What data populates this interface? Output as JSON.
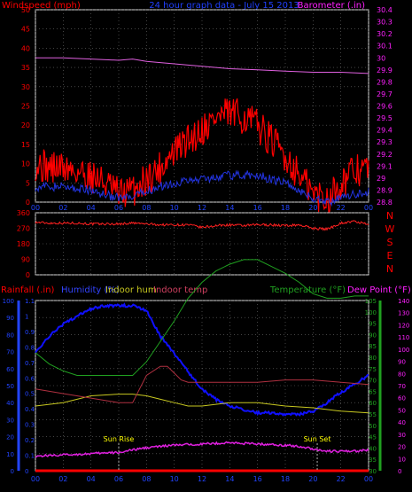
{
  "colors": {
    "background": "#000000",
    "frame": "#d8d8d8",
    "grid": "#6e6e6e",
    "windspeed": "#ff0000",
    "wind_avg": "#2233dd",
    "barometer": "#e060e0",
    "winddir": "#ff2020",
    "rainfall": "#ff0000",
    "humidity": "#1010ff",
    "indoor_hum": "#c8c820",
    "indoor_temp": "#b03040",
    "temperature": "#20a020",
    "dew_point": "#e020e0",
    "title": "#2040ff",
    "sun_marker": "#ffff00",
    "axis_blue": "#2244ff",
    "axis_green": "#20a020",
    "axis_magenta": "#ff20ff"
  },
  "chart_data": [
    {
      "type": "line",
      "title": "24 hour graph data - July 15 2013",
      "left_axis_label": "Windspeed (mph)",
      "right_axis_label": "Barometer (.in)",
      "x_ticks": [
        "00",
        "02",
        "04",
        "06",
        "08",
        "10",
        "12",
        "14",
        "16",
        "18",
        "20",
        "22",
        "00"
      ],
      "x_range": [
        0,
        24
      ],
      "y_left_range": [
        0,
        50
      ],
      "y_left_ticks": [
        "0",
        "5",
        "10",
        "15",
        "20",
        "25",
        "30",
        "35",
        "40",
        "45",
        "50"
      ],
      "y_right_range": [
        28.8,
        30.4
      ],
      "y_right_ticks": [
        "28.8",
        "28.9",
        "29",
        "29.1",
        "29.2",
        "29.3",
        "29.4",
        "29.5",
        "29.6",
        "29.7",
        "29.8",
        "29.9",
        "30",
        "30.1",
        "30.2",
        "30.3",
        "30.4"
      ],
      "grid": true,
      "series": [
        {
          "key": "windspeed",
          "x": [
            0,
            1,
            2,
            3,
            4,
            5,
            6,
            7,
            8,
            9,
            10,
            11,
            12,
            13,
            14,
            15,
            16,
            17,
            18,
            19,
            20,
            21,
            22,
            23,
            24
          ],
          "y": [
            10,
            9,
            9,
            8,
            7,
            5,
            2,
            3,
            6,
            9,
            13,
            16,
            19,
            22,
            23,
            22,
            20,
            16,
            12,
            7,
            2,
            1,
            5,
            8,
            9
          ]
        },
        {
          "key": "wind_avg",
          "x": [
            0,
            2,
            4,
            5,
            6,
            7,
            8,
            10,
            12,
            14,
            16,
            18,
            19,
            20,
            21,
            22,
            23,
            24
          ],
          "y": [
            4,
            4,
            3,
            2,
            1,
            1,
            3,
            5,
            6,
            7,
            7,
            5,
            3,
            1,
            0,
            1,
            2,
            3
          ]
        },
        {
          "key": "barometer",
          "axis": "right",
          "x": [
            0,
            2,
            4,
            6,
            7,
            8,
            10,
            12,
            14,
            16,
            18,
            20,
            22,
            24
          ],
          "y": [
            30.0,
            30.0,
            29.99,
            29.98,
            29.99,
            29.97,
            29.95,
            29.93,
            29.91,
            29.9,
            29.89,
            29.88,
            29.88,
            29.87
          ]
        }
      ]
    },
    {
      "type": "line",
      "title": "",
      "y_range": [
        0,
        360
      ],
      "y_ticks": [
        "0",
        "90",
        "180",
        "270",
        "360"
      ],
      "right_labels": [
        "N",
        "W",
        "S",
        "E",
        "N"
      ],
      "x_range": [
        0,
        24
      ],
      "grid": true,
      "series": [
        {
          "key": "winddir",
          "x": [
            0,
            1,
            2,
            3,
            4,
            5,
            6,
            7,
            8,
            9,
            10,
            11,
            12,
            13,
            14,
            15,
            16,
            17,
            18,
            19,
            20,
            21,
            22,
            23,
            24
          ],
          "y": [
            305,
            300,
            300,
            300,
            295,
            295,
            295,
            300,
            295,
            290,
            290,
            290,
            275,
            285,
            290,
            285,
            290,
            290,
            285,
            290,
            270,
            265,
            300,
            310,
            290
          ]
        }
      ]
    },
    {
      "type": "line",
      "legend": [
        "Rainfall (.in)",
        "Humidity (%)",
        "Indoor hum",
        "Indoor temp",
        "Temperature (°F)",
        "Dew Point (°F)"
      ],
      "x_ticks": [
        "00",
        "02",
        "04",
        "06",
        "08",
        "10",
        "12",
        "14",
        "16",
        "18",
        "20",
        "22",
        "00"
      ],
      "x_range": [
        0,
        24
      ],
      "y_hum_range": [
        0,
        100
      ],
      "y_hum_ticks": [
        "0",
        "10",
        "20",
        "30",
        "40",
        "50",
        "60",
        "70",
        "80",
        "90",
        "100"
      ],
      "y_rain_range": [
        0,
        1.1
      ],
      "y_rain_ticks": [
        "0",
        "0.1",
        "0.2",
        "0.3",
        "0.4",
        "0.5",
        "0.6",
        "0.7",
        "0.8",
        "0.9",
        "1",
        "1.1"
      ],
      "y_temp_range": [
        30,
        105
      ],
      "y_temp_ticks": [
        "30",
        "35",
        "40",
        "45",
        "50",
        "55",
        "60",
        "65",
        "70",
        "75",
        "80",
        "85",
        "90",
        "95",
        "100",
        "105"
      ],
      "y_dew_range": [
        0,
        140
      ],
      "y_dew_ticks": [
        "0",
        "10",
        "20",
        "30",
        "40",
        "50",
        "60",
        "70",
        "80",
        "90",
        "100",
        "110",
        "120",
        "130",
        "140"
      ],
      "annotations": [
        {
          "label": "Sun Rise",
          "x": 6
        },
        {
          "label": "Sun Set",
          "x": 20.3
        }
      ],
      "grid": true,
      "series": [
        {
          "key": "rainfall",
          "axis": "rain",
          "x": [
            0,
            24
          ],
          "y": [
            0,
            0
          ]
        },
        {
          "key": "humidity",
          "axis": "hum",
          "x": [
            0,
            1,
            2,
            3,
            4,
            5,
            6,
            7,
            8,
            9,
            10,
            11,
            12,
            13,
            14,
            15,
            16,
            17,
            18,
            19,
            20,
            21,
            22,
            23,
            24
          ],
          "y": [
            70,
            79,
            86,
            91,
            95,
            97,
            97,
            97,
            94,
            79,
            69,
            58,
            48,
            42,
            38,
            36,
            34,
            34,
            33,
            33,
            35,
            40,
            46,
            51,
            56
          ]
        },
        {
          "key": "indoor_hum",
          "axis": "hum",
          "x": [
            0,
            2,
            4,
            6,
            7,
            8,
            9,
            10,
            11,
            12,
            14,
            16,
            18,
            20,
            22,
            24
          ],
          "y": [
            38,
            40,
            44,
            45,
            45,
            44,
            42,
            40,
            38,
            38,
            40,
            40,
            38,
            37,
            35,
            34
          ]
        },
        {
          "key": "indoor_temp",
          "axis": "temp",
          "x": [
            0,
            2,
            4,
            6,
            7,
            7.5,
            8,
            9,
            9.5,
            10,
            10.5,
            11,
            12,
            14,
            16,
            18,
            20,
            22,
            24
          ],
          "y": [
            66,
            64,
            62,
            60,
            60,
            66,
            72,
            76,
            76,
            73,
            70,
            69,
            69,
            69,
            69,
            70,
            70,
            69,
            68
          ]
        },
        {
          "key": "temperature",
          "axis": "temp",
          "x": [
            0,
            1,
            2,
            3,
            4,
            5,
            6,
            7,
            8,
            9,
            10,
            11,
            12,
            13,
            14,
            15,
            16,
            17,
            18,
            19,
            20,
            21,
            22,
            23,
            24
          ],
          "y": [
            82,
            77,
            74,
            72,
            72,
            72,
            72,
            72,
            78,
            87,
            96,
            106,
            113,
            118,
            121,
            123,
            123,
            120,
            117,
            113,
            108,
            106,
            106,
            107,
            107
          ]
        },
        {
          "key": "dew_point",
          "axis": "dew",
          "x": [
            0,
            2,
            4,
            6,
            7,
            8,
            9,
            10,
            12,
            14,
            16,
            18,
            19,
            20,
            21,
            22,
            23,
            24
          ],
          "y": [
            12,
            13,
            14,
            15,
            17,
            19,
            20,
            21,
            22,
            23,
            22,
            21,
            20,
            18,
            16,
            16,
            16,
            17
          ]
        }
      ]
    }
  ]
}
